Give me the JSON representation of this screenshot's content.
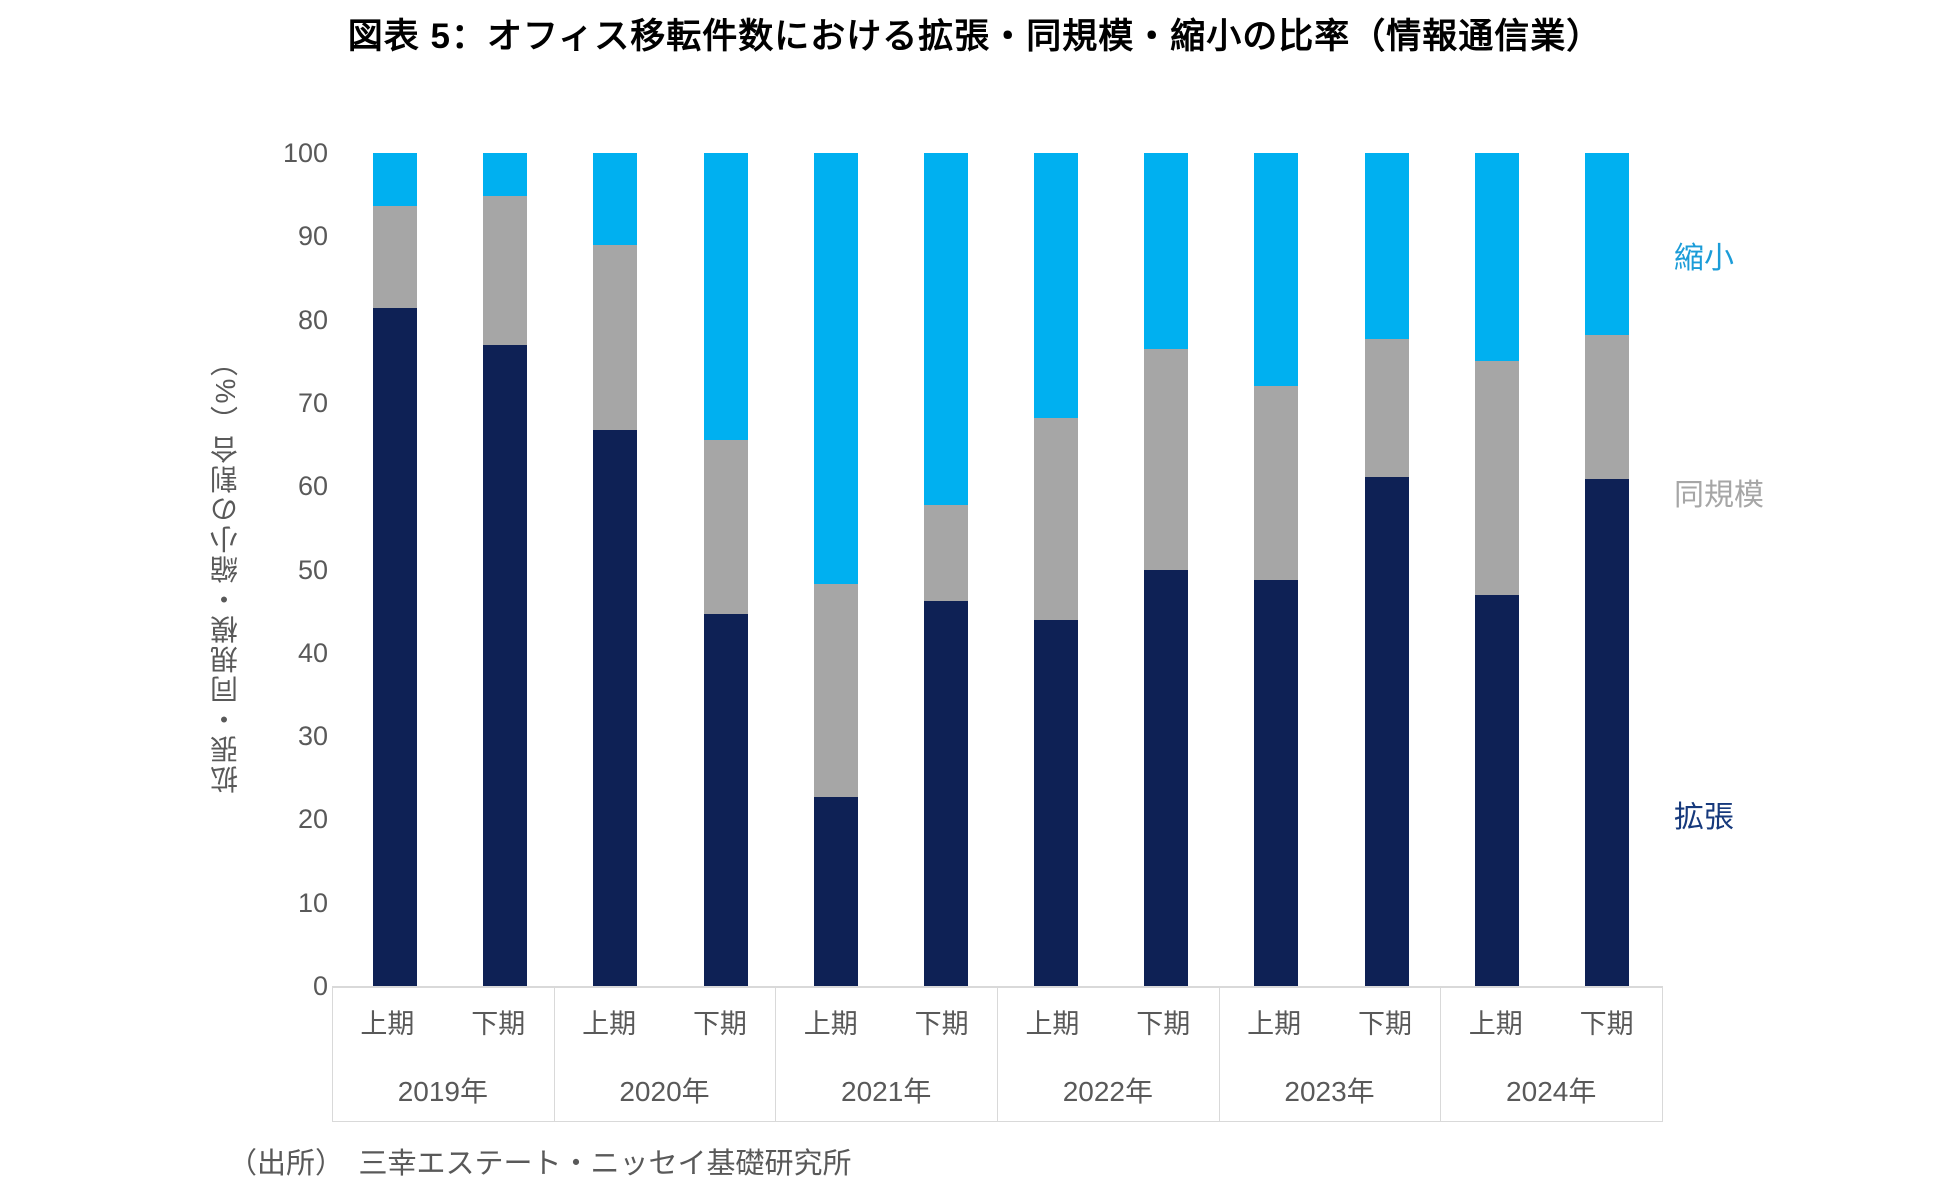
{
  "title": "図表 5：オフィス移転件数における拡張・同規模・縮小の比率（情報通信業）",
  "source": "（出所）　三幸エステート・ニッセイ基礎研究所",
  "y_axis": {
    "title": "拡張・同規模・縮小の割合（%）"
  },
  "legend": {
    "items": [
      {
        "label": "縮小",
        "color": "#1b9cd8"
      },
      {
        "label": "同規模",
        "color": "#a6a6a6"
      },
      {
        "label": "拡張",
        "color": "#16397c"
      }
    ]
  },
  "chart_data": {
    "type": "bar",
    "stacked": true,
    "unit": "%",
    "title": "図表 5：オフィス移転件数における拡張・同規模・縮小の比率（情報通信業）",
    "ylabel": "拡張・同規模・縮小の割合（%）",
    "ylim": [
      0,
      100
    ],
    "yticks": [
      0,
      10,
      20,
      30,
      40,
      50,
      60,
      70,
      80,
      90,
      100
    ],
    "grid": false,
    "legend_position": "right",
    "groups": [
      {
        "year": "2019年",
        "periods": [
          "上期",
          "下期"
        ]
      },
      {
        "year": "2020年",
        "periods": [
          "上期",
          "下期"
        ]
      },
      {
        "year": "2021年",
        "periods": [
          "上期",
          "下期"
        ]
      },
      {
        "year": "2022年",
        "periods": [
          "上期",
          "下期"
        ]
      },
      {
        "year": "2023年",
        "periods": [
          "上期",
          "下期"
        ]
      },
      {
        "year": "2024年",
        "periods": [
          "上期",
          "下期"
        ]
      }
    ],
    "categories": [
      "2019年上期",
      "2019年下期",
      "2020年上期",
      "2020年下期",
      "2021年上期",
      "2021年下期",
      "2022年上期",
      "2022年下期",
      "2023年上期",
      "2023年下期",
      "2024年上期",
      "2024年下期"
    ],
    "series": [
      {
        "name": "拡張",
        "color": "#0e2155",
        "values": [
          81.4,
          76.9,
          66.7,
          44.7,
          22.7,
          46.2,
          43.9,
          50.0,
          48.7,
          61.1,
          46.9,
          60.9
        ]
      },
      {
        "name": "同規模",
        "color": "#a6a6a6",
        "values": [
          12.3,
          18.0,
          22.2,
          20.8,
          25.6,
          11.5,
          24.3,
          26.5,
          23.3,
          16.6,
          28.1,
          17.3
        ]
      },
      {
        "name": "縮小",
        "color": "#00b0f0",
        "values": [
          6.3,
          5.1,
          11.1,
          34.5,
          51.7,
          42.3,
          31.8,
          23.5,
          28.0,
          22.3,
          25.0,
          21.8
        ]
      }
    ]
  }
}
